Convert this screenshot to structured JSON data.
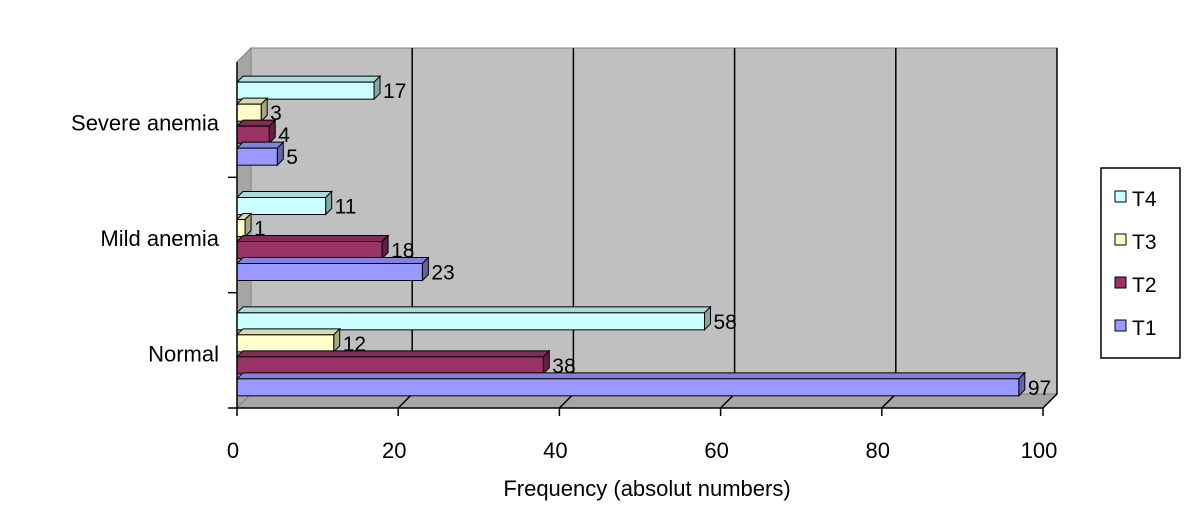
{
  "chart_data": {
    "type": "bar",
    "orientation": "horizontal",
    "title": "",
    "xlabel": "Frequency (absolut numbers)",
    "ylabel": "",
    "xlim": [
      0,
      100
    ],
    "x_ticks": [
      "0",
      "20",
      "40",
      "60",
      "80",
      "100"
    ],
    "categories": [
      "Severe anemia",
      "Mild anemia",
      "Normal"
    ],
    "series": [
      {
        "name": "T4",
        "values": [
          17,
          11,
          58
        ],
        "labels": [
          "17",
          "11",
          "58"
        ],
        "color": "#ccffff"
      },
      {
        "name": "T3",
        "values": [
          3,
          1,
          12
        ],
        "labels": [
          "3",
          "1",
          "12"
        ],
        "color": "#ffffcc"
      },
      {
        "name": "T2",
        "values": [
          4,
          18,
          38
        ],
        "labels": [
          "4",
          "18",
          "38"
        ],
        "color": "#993366"
      },
      {
        "name": "T1",
        "values": [
          5,
          23,
          97
        ],
        "labels": [
          "5",
          "23",
          "97"
        ],
        "color": "#9999ff"
      }
    ],
    "legend": {
      "position": "right",
      "entries": [
        "T4",
        "T3",
        "T2",
        "T1"
      ]
    },
    "grid": true,
    "plot_background": "#c0c0c0",
    "style": "3d"
  }
}
